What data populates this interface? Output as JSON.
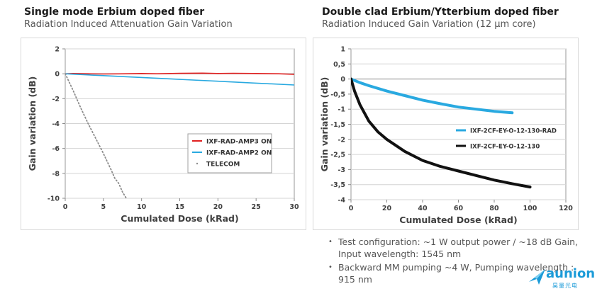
{
  "left_panel": {
    "title": "Single mode Erbium doped fiber",
    "subtitle": "Radiation Induced Attenuation Gain Variation"
  },
  "right_panel": {
    "title": "Double clad Erbium/Ytterbium doped fiber",
    "subtitle": "Radiation Induced Gain Variation (12 µm core)"
  },
  "chart_data": [
    {
      "type": "line",
      "title": "",
      "xlabel": "Cumulated Dose (kRad)",
      "ylabel": "Gain variation (dB)",
      "xlim": [
        0,
        30
      ],
      "ylim": [
        -10,
        2
      ],
      "x_ticks": [
        0,
        5,
        10,
        15,
        20,
        25,
        30
      ],
      "y_ticks": [
        2,
        0,
        -2,
        -4,
        -6,
        -8,
        -10
      ],
      "grid": "horizontal",
      "legend": "lower-right",
      "series": [
        {
          "name": "IXF-RAD-AMP3 ON",
          "color": "#e02020",
          "style": "solid",
          "x": [
            0,
            1,
            3,
            5,
            8,
            10,
            12,
            15,
            18,
            20,
            22,
            25,
            28,
            30
          ],
          "y": [
            0,
            0.02,
            0.0,
            -0.02,
            0.0,
            0.02,
            0.0,
            0.03,
            0.05,
            0.02,
            0.04,
            0.02,
            0.0,
            -0.05
          ]
        },
        {
          "name": "IXF-RAD-AMP2 ON",
          "color": "#29a9e0",
          "style": "solid",
          "x": [
            0,
            5,
            10,
            15,
            20,
            25,
            30
          ],
          "y": [
            0,
            -0.15,
            -0.3,
            -0.45,
            -0.6,
            -0.75,
            -0.9
          ]
        },
        {
          "name": "TELECOM",
          "color": "#8c8c8c",
          "style": "dotted",
          "x": [
            0,
            1,
            2,
            3,
            4,
            5,
            6,
            6.5,
            7,
            7.5,
            8
          ],
          "y": [
            0,
            -1.3,
            -2.7,
            -4.0,
            -5.2,
            -6.4,
            -7.7,
            -8.4,
            -8.8,
            -9.5,
            -10
          ]
        }
      ]
    },
    {
      "type": "line",
      "title": "",
      "xlabel": "Cumulated Dose (kRad)",
      "ylabel": "Gain variation (dB)",
      "xlim": [
        0,
        120
      ],
      "ylim": [
        -4,
        1
      ],
      "x_ticks": [
        0,
        20,
        40,
        60,
        80,
        100,
        120
      ],
      "y_ticks": [
        1,
        0.5,
        0,
        -0.5,
        -1,
        -1.5,
        -2,
        -2.5,
        -3,
        -3.5,
        -4
      ],
      "y_tick_labels": [
        "1",
        "0,5",
        "0",
        "-0,5",
        "-1",
        "-1,5",
        "-2",
        "-2,5",
        "-3",
        "-3,5",
        "-4"
      ],
      "grid": "horizontal",
      "legend": "center-right",
      "series": [
        {
          "name": "IXF-2CF-EY-O-12-130-RAD",
          "color": "#29a9e0",
          "style": "solid",
          "x": [
            0,
            5,
            10,
            20,
            30,
            40,
            50,
            60,
            70,
            80,
            90
          ],
          "y": [
            0,
            -0.12,
            -0.22,
            -0.4,
            -0.55,
            -0.7,
            -0.82,
            -0.93,
            -1.0,
            -1.07,
            -1.12
          ]
        },
        {
          "name": "IXF-2CF-EY-O-12-130",
          "color": "#111111",
          "style": "solid",
          "x": [
            0,
            2,
            5,
            10,
            15,
            20,
            30,
            40,
            50,
            60,
            70,
            80,
            90,
            100
          ],
          "y": [
            0,
            -0.4,
            -0.85,
            -1.4,
            -1.75,
            -2.0,
            -2.4,
            -2.7,
            -2.9,
            -3.05,
            -3.2,
            -3.35,
            -3.47,
            -3.58
          ]
        }
      ]
    }
  ],
  "notes": [
    "Test configuration: ~1 W output power / ~18 dB Gain, Input wavelength: 1545 nm",
    "Backward MM pumping ~4 W, Pumping wavelength : 915 nm"
  ],
  "logo": {
    "text": "aunion",
    "subtext": "昊量光电",
    "color": "#1b9bd8"
  }
}
